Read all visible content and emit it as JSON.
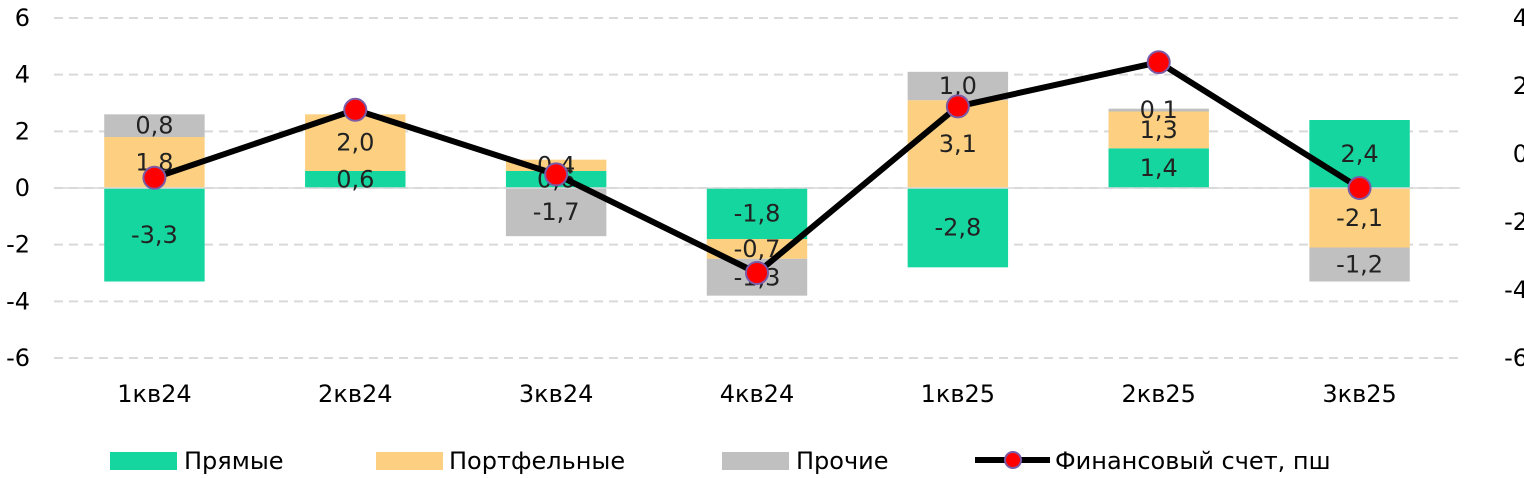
{
  "chart_data": {
    "type": "bar",
    "stacked": true,
    "categories": [
      "1кв24",
      "2кв24",
      "3кв24",
      "4кв24",
      "1кв25",
      "2кв25",
      "3кв25"
    ],
    "series": [
      {
        "name": "Прямые",
        "color": "#16d6a0",
        "values": [
          -3.3,
          0.6,
          0.6,
          -1.8,
          -2.8,
          1.4,
          2.4
        ],
        "labels": [
          "-3,3",
          "0,6",
          "0,6",
          "-1,8",
          "-2,8",
          "1,4",
          "2,4"
        ]
      },
      {
        "name": "Портфельные",
        "color": "#fcd080",
        "values": [
          1.8,
          2.0,
          0.4,
          -0.7,
          3.1,
          1.3,
          -2.1
        ],
        "labels": [
          "1,8",
          "2,0",
          "0,4",
          "-0,7",
          "3,1",
          "1,3",
          "-2,1"
        ]
      },
      {
        "name": "Прочие",
        "color": "#c0c0c0",
        "values": [
          0.8,
          0.0,
          -1.7,
          -1.3,
          1.0,
          0.1,
          -1.2
        ],
        "labels": [
          "0,8",
          "",
          "-1,7",
          "-1,3",
          "1,0",
          "0,1",
          "-1,2"
        ]
      }
    ],
    "line": {
      "name": "Финансовый счет, пш",
      "axis": "right",
      "color": "#000000",
      "marker_color": "#ff0000",
      "marker_edge": "#7b5aa6",
      "values": [
        -0.7,
        1.3,
        -0.6,
        -3.5,
        1.4,
        2.7,
        -1.0
      ]
    },
    "y_left": {
      "min": -6,
      "max": 6,
      "ticks": [
        6,
        4,
        2,
        0,
        -2,
        -4,
        -6
      ],
      "tick_labels": [
        "6",
        "4",
        "2",
        "0",
        "-2",
        "-4",
        "-6"
      ]
    },
    "y_right": {
      "min": -6,
      "max": 4,
      "ticks": [
        4,
        2,
        0,
        -2,
        -4,
        -6
      ],
      "tick_labels": [
        "4",
        "2",
        "0",
        "-2",
        "-4",
        "-6"
      ]
    },
    "grid": "dashed-horizontal",
    "legend_position": "bottom"
  }
}
